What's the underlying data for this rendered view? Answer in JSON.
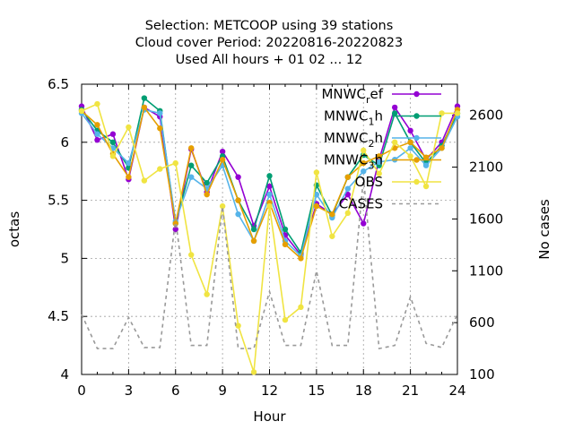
{
  "chart_data": {
    "type": "line",
    "title_lines": [
      "Selection: METCOOP using    39 stations",
      "Cloud cover   Period: 20220816-20220823",
      "Used  All hours + 01 02 ... 12"
    ],
    "xlabel": "Hour",
    "ylabel": "octas",
    "y2label": "No cases",
    "xlim": [
      0,
      24
    ],
    "ylim": [
      4,
      6.5
    ],
    "y2lim": [
      100,
      2900
    ],
    "xticks": [
      "0",
      "3",
      "6",
      "9",
      "12",
      "15",
      "18",
      "21",
      "24"
    ],
    "yticks": [
      "4",
      "4.5",
      "5",
      "5.5",
      "6",
      "6.5"
    ],
    "y2ticks": [
      "100",
      "600",
      "1100",
      "1600",
      "2100",
      "2600"
    ],
    "grid": true,
    "legend_position": "top-right",
    "x": [
      0,
      1,
      2,
      3,
      4,
      5,
      6,
      7,
      8,
      9,
      10,
      11,
      12,
      13,
      14,
      15,
      16,
      17,
      18,
      19,
      20,
      21,
      22,
      23,
      24
    ],
    "series": [
      {
        "name_main": "MNWC",
        "name_sub": "r",
        "name_rest": "ef",
        "color": "#9400d3",
        "marker": "circle",
        "axis": "y",
        "values": [
          6.31,
          6.02,
          6.07,
          5.68,
          6.3,
          6.22,
          5.25,
          5.94,
          5.57,
          5.92,
          5.7,
          5.28,
          5.62,
          5.2,
          5.03,
          5.47,
          5.38,
          5.55,
          5.3,
          5.85,
          6.3,
          6.1,
          5.85,
          6.0,
          6.31
        ]
      },
      {
        "name_main": "MNWC",
        "name_sub": "1",
        "name_rest": "h",
        "color": "#009e73",
        "marker": "circle",
        "axis": "y",
        "values": [
          6.28,
          6.1,
          6.0,
          5.78,
          6.38,
          6.27,
          5.3,
          5.8,
          5.65,
          5.88,
          5.5,
          5.25,
          5.71,
          5.25,
          5.05,
          5.63,
          5.37,
          5.7,
          5.89,
          5.8,
          6.25,
          6.0,
          5.82,
          5.97,
          6.25
        ]
      },
      {
        "name_main": "MNWC",
        "name_sub": "2",
        "name_rest": "h",
        "color": "#56b4e9",
        "marker": "circle",
        "axis": "y",
        "values": [
          6.25,
          6.07,
          5.95,
          5.82,
          6.28,
          6.25,
          5.32,
          5.7,
          5.6,
          5.8,
          5.38,
          5.15,
          5.55,
          5.15,
          5.02,
          5.55,
          5.35,
          5.6,
          5.75,
          5.83,
          5.85,
          5.95,
          5.8,
          5.95,
          6.22
        ]
      },
      {
        "name_main": "MNWC",
        "name_sub": "3",
        "name_rest": "h",
        "color": "#e69f00",
        "marker": "circle",
        "axis": "y",
        "values": [
          6.27,
          6.15,
          5.9,
          5.7,
          6.3,
          6.12,
          5.3,
          5.95,
          5.55,
          5.85,
          5.5,
          5.15,
          5.48,
          5.12,
          5.0,
          5.45,
          5.38,
          5.7,
          5.82,
          5.88,
          5.95,
          6.0,
          5.87,
          5.95,
          6.28
        ]
      },
      {
        "name_main": "OBS",
        "name_sub": "",
        "name_rest": "",
        "color": "#f0e442",
        "marker": "circle",
        "axis": "y",
        "values": [
          6.27,
          6.33,
          5.88,
          6.13,
          5.67,
          5.77,
          5.82,
          5.03,
          4.69,
          5.45,
          4.42,
          4.02,
          5.45,
          4.47,
          4.58,
          5.74,
          5.19,
          5.39,
          5.93,
          5.73,
          6.0,
          5.88,
          5.62,
          6.25,
          6.25
        ]
      },
      {
        "name_main": "CASES",
        "name_sub": "",
        "name_rest": "",
        "color": "#999999",
        "marker": "none",
        "axis": "y2",
        "dashed": true,
        "values": [
          680,
          350,
          350,
          650,
          360,
          360,
          1600,
          380,
          380,
          1720,
          350,
          350,
          900,
          380,
          380,
          1100,
          380,
          380,
          2000,
          350,
          380,
          850,
          400,
          360,
          680
        ]
      }
    ]
  }
}
